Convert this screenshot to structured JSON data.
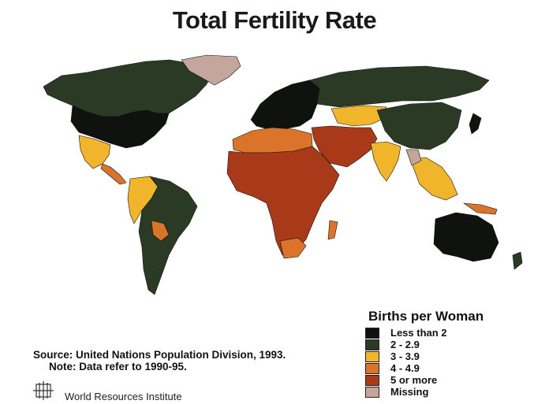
{
  "title": "Total Fertility Rate",
  "legend": {
    "title": "Births per Woman",
    "items": [
      {
        "label": "Less than 2",
        "color": "#0f120e"
      },
      {
        "label": "2 - 2.9",
        "color": "#2a3a25"
      },
      {
        "label": "3 - 3.9",
        "color": "#f0b52a"
      },
      {
        "label": "4 - 4.9",
        "color": "#d9742a"
      },
      {
        "label": "5 or more",
        "color": "#a83a1a"
      },
      {
        "label": "Missing",
        "color": "#c4a69c"
      }
    ]
  },
  "source": "Source: United Nations Population Division, 1993.",
  "note": "Note: Data refer to 1990-95.",
  "publisher": "World Resources Institute"
}
